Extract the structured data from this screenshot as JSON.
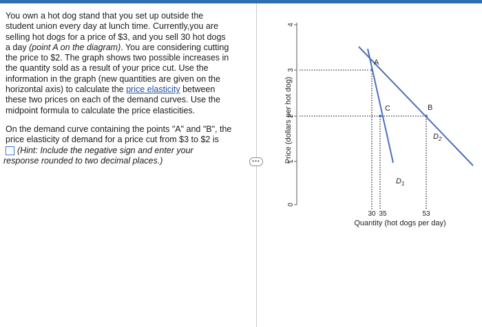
{
  "question": {
    "paragraph1_lines": [
      "You own a hot dog stand that you set up outside the",
      "student union every day at lunch time. Currently,you are",
      "selling hot dogs for a price of $3, and you sell 30 hot dogs",
      "a day ",
      "the price to $2. The graph shows two possible increases in",
      "the quantity sold as a result of your price cut. Use the",
      "information in the graph (new quantities are given on the",
      "horizontal axis) to calculate the ",
      "these two prices on each of the demand curves. Use the",
      "midpoint formula to calculate the price elasticities."
    ],
    "line4_italic": "(point A on the diagram)",
    "line4_tail": ". You are considering cutting",
    "link_text": "price elasticity",
    "line8_tail": " between",
    "paragraph2_lines": [
      "On the demand curve containing the points \"A\" and \"B\", the",
      "price elasticity of demand for a price cut from $3 to $2 is"
    ],
    "hint_line1": "(Hint: Include the negative sign and enter your",
    "hint_line2": "response rounded to two decimal places.)",
    "answer_value": ""
  },
  "handle_label": "•••",
  "chart_data": {
    "type": "line",
    "ylabel": "Price (dollars per hot dog)",
    "xlabel": "Quantity (hot dogs per day)",
    "yticks": [
      "0",
      "1",
      "2",
      "3",
      "4"
    ],
    "xticks": [
      "30",
      "35",
      "53"
    ],
    "ylim": [
      0,
      4
    ],
    "series": [
      {
        "name": "D1",
        "points": [
          [
            30,
            3
          ],
          [
            35,
            2
          ]
        ]
      },
      {
        "name": "D2",
        "points": [
          [
            30,
            3
          ],
          [
            53,
            2
          ]
        ]
      }
    ],
    "points": [
      {
        "label": "A",
        "x": 30,
        "y": 3
      },
      {
        "label": "C",
        "x": 35,
        "y": 2
      },
      {
        "label": "B",
        "x": 53,
        "y": 2
      }
    ],
    "curve_labels": [
      "D",
      "1",
      "D",
      "2"
    ]
  }
}
